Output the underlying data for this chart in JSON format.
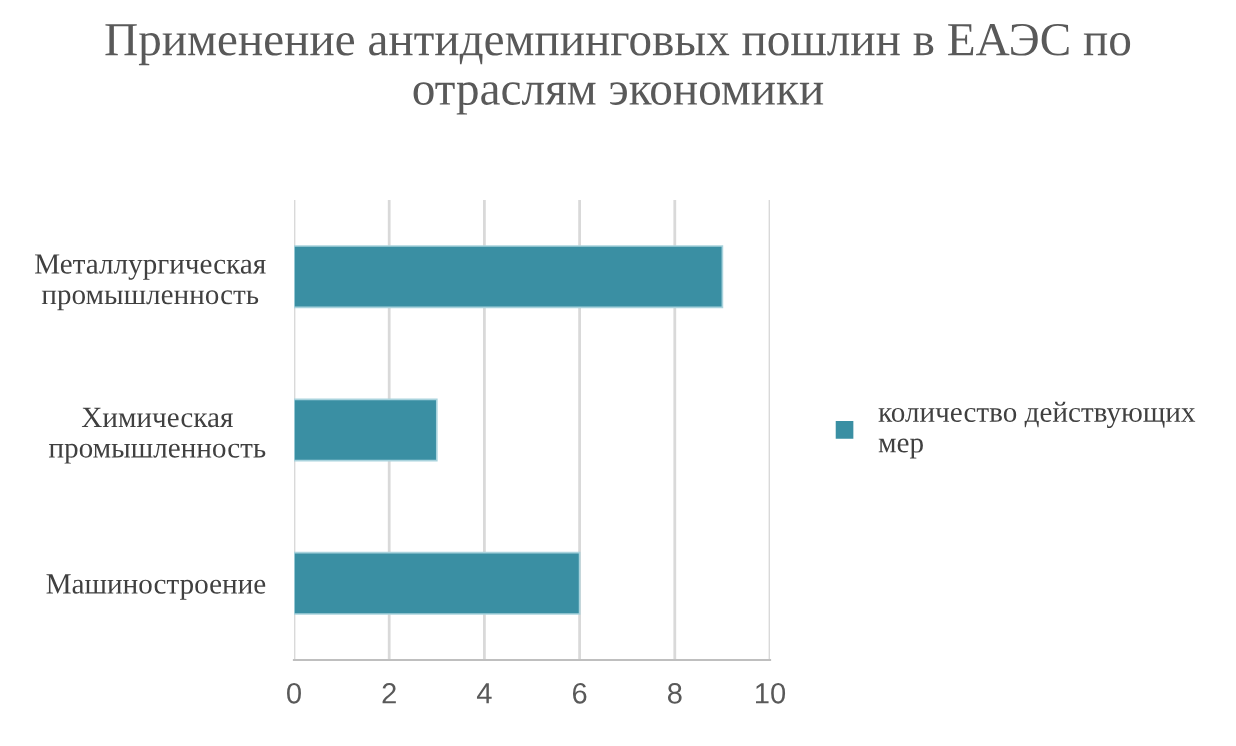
{
  "chart_data": {
    "type": "bar",
    "orientation": "horizontal",
    "title": "Применение антидемпинговых пошлин в ЕАЭС по отраслям экономики",
    "categories": [
      "Металлургическая промышленность",
      "Химическая промышленность",
      "Машиностроение"
    ],
    "series": [
      {
        "name": "количество действующих мер",
        "color": "#3a8fa3",
        "values": [
          9,
          3,
          6
        ]
      }
    ],
    "xlim": [
      0,
      10
    ],
    "xticks": [
      0,
      2,
      4,
      6,
      8,
      10
    ],
    "grid": "x",
    "legend": "right"
  }
}
